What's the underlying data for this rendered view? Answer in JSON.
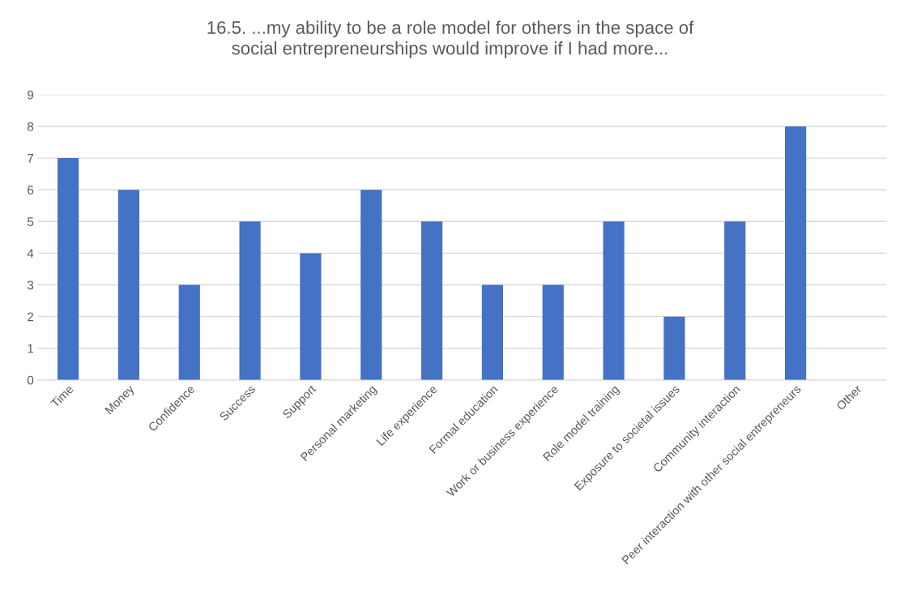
{
  "chart_data": {
    "type": "bar",
    "title": "16.5. ...my ability to be a role model for others in the space of social entrepreneurships would improve if I had more...",
    "categories": [
      "Time",
      "Money",
      "Confidence",
      "Success",
      "Support",
      "Personal marketing",
      "Life experience",
      "Formal education",
      "Work or business experience",
      "Role model training",
      "Exposure to societal issues",
      "Community interaction",
      "Peer interaction with other social entrepreneurs",
      "Other"
    ],
    "values": [
      7,
      6,
      3,
      5,
      4,
      6,
      5,
      3,
      3,
      5,
      2,
      5,
      8,
      0
    ],
    "color": "#4472c4",
    "ylim": [
      0,
      9
    ],
    "yticks": [
      0,
      1,
      2,
      3,
      4,
      5,
      6,
      7,
      8,
      9
    ],
    "grid": "y"
  }
}
